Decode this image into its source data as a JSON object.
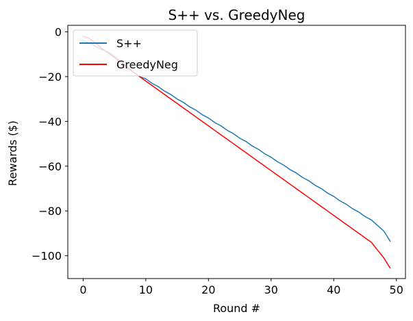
{
  "chart_data": {
    "type": "line",
    "title": "S++ vs. GreedyNeg",
    "xlabel": "Round #",
    "ylabel": "Rewards ($)",
    "xlim": [
      -2.45,
      51.45
    ],
    "ylim": [
      -110.2,
      2.9
    ],
    "xticks": [
      0,
      10,
      20,
      30,
      40,
      50
    ],
    "yticks": [
      0,
      -20,
      -40,
      -60,
      -80,
      -100
    ],
    "xtick_labels": [
      "0",
      "10",
      "20",
      "30",
      "40",
      "50"
    ],
    "ytick_labels": [
      "0",
      "−20",
      "−40",
      "−60",
      "−80",
      "−100"
    ],
    "grid": false,
    "legend_position": "top-left",
    "series": [
      {
        "name": "S++",
        "color": "#1f77b4",
        "x": [
          0,
          1,
          2,
          3,
          4,
          5,
          6,
          7,
          8,
          9,
          10,
          11,
          12,
          13,
          14,
          15,
          16,
          17,
          18,
          19,
          20,
          21,
          22,
          23,
          24,
          25,
          26,
          27,
          28,
          29,
          30,
          31,
          32,
          33,
          34,
          35,
          36,
          37,
          38,
          39,
          40,
          41,
          42,
          43,
          44,
          45,
          46,
          47,
          48,
          49
        ],
        "values": [
          -4.0,
          -5.0,
          -6.5,
          -8.0,
          -9.0,
          -11.0,
          -13.5,
          -15.5,
          -18.0,
          -20.0,
          -21.0,
          -23.0,
          -24.5,
          -26.5,
          -28.0,
          -30.0,
          -31.5,
          -33.5,
          -35.0,
          -37.0,
          -38.5,
          -40.5,
          -42.0,
          -44.0,
          -45.5,
          -47.5,
          -49.0,
          -51.0,
          -52.5,
          -54.5,
          -56.0,
          -58.0,
          -59.5,
          -61.5,
          -63.0,
          -65.0,
          -66.5,
          -68.5,
          -70.0,
          -72.0,
          -73.5,
          -75.5,
          -77.0,
          -79.0,
          -80.5,
          -82.5,
          -84.0,
          -86.5,
          -89.0,
          -93.5
        ]
      },
      {
        "name": "GreedyNeg",
        "color": "#ff0000",
        "x": [
          0,
          1,
          2,
          3,
          4,
          5,
          6,
          7,
          8,
          9,
          10,
          11,
          12,
          13,
          14,
          15,
          16,
          17,
          18,
          19,
          20,
          21,
          22,
          23,
          24,
          25,
          26,
          27,
          28,
          29,
          30,
          31,
          32,
          33,
          34,
          35,
          36,
          37,
          38,
          39,
          40,
          41,
          42,
          43,
          44,
          45,
          46,
          47,
          48,
          49
        ],
        "values": [
          -2.0,
          -3.0,
          -5.0,
          -7.5,
          -9.5,
          -11.5,
          -13.5,
          -16.0,
          -18.0,
          -20.0,
          -22.0,
          -24.0,
          -26.0,
          -28.0,
          -30.0,
          -32.0,
          -34.0,
          -36.0,
          -38.0,
          -40.0,
          -42.0,
          -44.0,
          -46.0,
          -48.0,
          -50.0,
          -52.0,
          -54.0,
          -56.0,
          -58.0,
          -60.0,
          -62.0,
          -64.0,
          -66.0,
          -68.0,
          -70.0,
          -72.0,
          -74.0,
          -76.0,
          -78.0,
          -80.0,
          -82.0,
          -84.0,
          -86.0,
          -88.0,
          -90.0,
          -92.0,
          -94.0,
          -97.5,
          -101.0,
          -105.5
        ]
      }
    ]
  }
}
